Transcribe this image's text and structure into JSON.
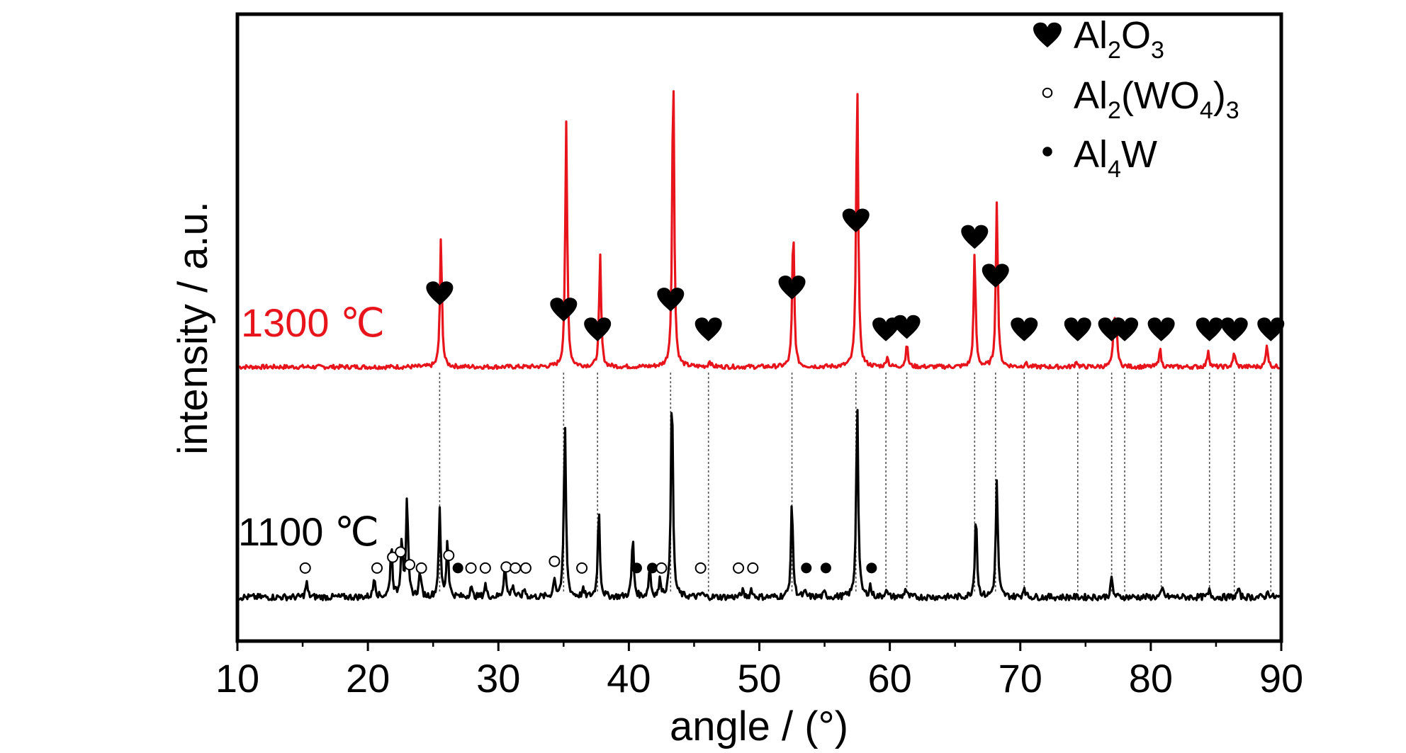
{
  "chart_data": {
    "type": "line",
    "xlabel": "angle / (°)",
    "ylabel": "intensity / a.u.",
    "xlim": [
      10,
      90
    ],
    "xticks": [
      10,
      20,
      30,
      40,
      50,
      60,
      70,
      80,
      90
    ],
    "grid": false,
    "legend_position": "top-right",
    "legend": [
      {
        "symbol": "heart",
        "base": "Al",
        "sub1": "2",
        "mid": "O",
        "sub2": "3",
        "tail": "",
        "sub3": ""
      },
      {
        "symbol": "open-circle",
        "base": "Al",
        "sub1": "2",
        "mid": "(WO",
        "sub2": "4",
        "tail": ")",
        "sub3": "3"
      },
      {
        "symbol": "filled-circle",
        "base": "Al",
        "sub1": "4",
        "mid": "W",
        "sub2": "",
        "tail": "",
        "sub3": ""
      }
    ],
    "series": [
      {
        "name": "1300 ℃",
        "color": "#e8141c",
        "peaks": [
          [
            25.6,
            0.6
          ],
          [
            35.2,
            1.14
          ],
          [
            37.8,
            0.52
          ],
          [
            43.4,
            1.42
          ],
          [
            46.2,
            0.03
          ],
          [
            52.6,
            0.66
          ],
          [
            57.5,
            1.36
          ],
          [
            59.8,
            0.05
          ],
          [
            61.3,
            0.11
          ],
          [
            66.5,
            0.53
          ],
          [
            68.2,
            0.78
          ],
          [
            70.4,
            0.02
          ],
          [
            74.3,
            0.03
          ],
          [
            77.2,
            0.24
          ],
          [
            77.4,
            0.12
          ],
          [
            80.7,
            0.09
          ],
          [
            84.4,
            0.08
          ],
          [
            86.4,
            0.07
          ],
          [
            88.9,
            0.11
          ]
        ]
      },
      {
        "name": "1100 ℃",
        "color": "#000000",
        "peaks": [
          [
            15.3,
            0.07
          ],
          [
            20.5,
            0.1
          ],
          [
            21.8,
            0.25
          ],
          [
            22.6,
            0.28
          ],
          [
            23.0,
            0.45
          ],
          [
            24.0,
            0.12
          ],
          [
            25.5,
            0.4
          ],
          [
            26.1,
            0.27
          ],
          [
            27.9,
            0.05
          ],
          [
            29.0,
            0.06
          ],
          [
            30.5,
            0.16
          ],
          [
            31.1,
            0.06
          ],
          [
            32.0,
            0.04
          ],
          [
            34.3,
            0.09
          ],
          [
            35.1,
            0.82
          ],
          [
            36.5,
            0.03
          ],
          [
            37.7,
            0.42
          ],
          [
            40.3,
            0.28
          ],
          [
            41.6,
            0.14
          ],
          [
            42.4,
            0.08
          ],
          [
            43.3,
            1.0
          ],
          [
            45.6,
            0.02
          ],
          [
            48.7,
            0.03
          ],
          [
            49.4,
            0.04
          ],
          [
            52.5,
            0.45
          ],
          [
            53.5,
            0.02
          ],
          [
            55.0,
            0.02
          ],
          [
            57.5,
            0.92
          ],
          [
            58.5,
            0.05
          ],
          [
            59.7,
            0.04
          ],
          [
            61.2,
            0.04
          ],
          [
            66.6,
            0.4
          ],
          [
            68.2,
            0.55
          ],
          [
            70.3,
            0.05
          ],
          [
            77.0,
            0.09
          ],
          [
            80.9,
            0.04
          ],
          [
            84.5,
            0.03
          ],
          [
            86.7,
            0.04
          ],
          [
            89.0,
            0.03
          ]
        ]
      }
    ],
    "markers_1300": [
      {
        "symbol": "heart",
        "x": 25.5
      },
      {
        "symbol": "heart",
        "x": 35.0
      },
      {
        "symbol": "heart",
        "x": 37.6
      },
      {
        "symbol": "heart",
        "x": 43.2
      },
      {
        "symbol": "heart",
        "x": 46.1
      },
      {
        "symbol": "heart",
        "x": 52.5
      },
      {
        "symbol": "heart",
        "x": 57.4
      },
      {
        "symbol": "heart",
        "x": 59.7
      },
      {
        "symbol": "heart",
        "x": 61.3
      },
      {
        "symbol": "heart",
        "x": 66.5
      },
      {
        "symbol": "heart",
        "x": 68.1
      },
      {
        "symbol": "heart",
        "x": 70.3
      },
      {
        "symbol": "heart",
        "x": 74.4
      },
      {
        "symbol": "heart",
        "x": 77.0
      },
      {
        "symbol": "heart",
        "x": 78.0
      },
      {
        "symbol": "heart",
        "x": 80.8
      },
      {
        "symbol": "heart",
        "x": 84.5
      },
      {
        "symbol": "heart",
        "x": 86.4
      },
      {
        "symbol": "heart",
        "x": 89.2
      }
    ],
    "markers_1100": [
      {
        "symbol": "open-circle",
        "x": 15.2
      },
      {
        "symbol": "open-circle",
        "x": 20.7
      },
      {
        "symbol": "open-circle",
        "x": 21.9
      },
      {
        "symbol": "open-circle",
        "x": 22.5
      },
      {
        "symbol": "open-circle",
        "x": 23.2
      },
      {
        "symbol": "open-circle",
        "x": 24.1
      },
      {
        "symbol": "open-circle",
        "x": 26.2
      },
      {
        "symbol": "filled-circle",
        "x": 26.9
      },
      {
        "symbol": "open-circle",
        "x": 27.9
      },
      {
        "symbol": "open-circle",
        "x": 29.0
      },
      {
        "symbol": "open-circle",
        "x": 30.6
      },
      {
        "symbol": "open-circle",
        "x": 31.3
      },
      {
        "symbol": "open-circle",
        "x": 32.1
      },
      {
        "symbol": "open-circle",
        "x": 34.3
      },
      {
        "symbol": "open-circle",
        "x": 36.4
      },
      {
        "symbol": "filled-circle",
        "x": 40.6
      },
      {
        "symbol": "filled-circle",
        "x": 41.8
      },
      {
        "symbol": "open-circle",
        "x": 42.5
      },
      {
        "symbol": "open-circle",
        "x": 45.5
      },
      {
        "symbol": "open-circle",
        "x": 48.4
      },
      {
        "symbol": "open-circle",
        "x": 49.5
      },
      {
        "symbol": "filled-circle",
        "x": 53.6
      },
      {
        "symbol": "filled-circle",
        "x": 55.1
      },
      {
        "symbol": "filled-circle",
        "x": 58.6
      }
    ]
  }
}
